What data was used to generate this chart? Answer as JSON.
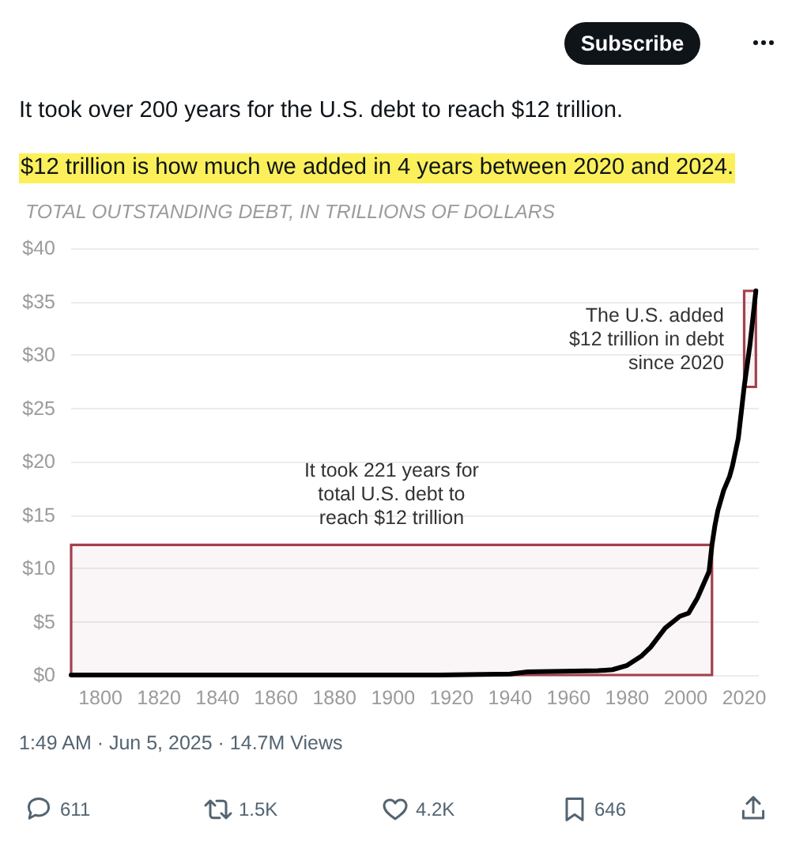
{
  "chart_data": {
    "type": "line",
    "title": "It took over 200 years for the U.S. debt to reach $12 trillion.",
    "subtitle": "$12 trillion is how much we added in 4 years between 2020 and 2024.",
    "ylabel": "TOTAL OUTSTANDING DEBT, IN TRILLIONS OF DOLLARS",
    "series": [
      {
        "color": "#000000",
        "x": [
          1790,
          1916,
          1940,
          1946,
          1970,
          1975,
          1980,
          1985,
          1988,
          1993,
          1998,
          2001,
          2004,
          2008,
          2009,
          2010,
          2011,
          2013,
          2015,
          2016,
          2018,
          2020,
          2022,
          2024
        ],
        "values": [
          0,
          0,
          0.1,
          0.3,
          0.4,
          0.5,
          0.9,
          1.8,
          2.6,
          4.4,
          5.5,
          5.8,
          7.2,
          9.7,
          12.2,
          14.0,
          15.4,
          17.3,
          18.6,
          19.6,
          22.2,
          27.0,
          31.0,
          36.0
        ]
      }
    ],
    "xlim": [
      1790,
      2025
    ],
    "xticks": [
      1800,
      1820,
      1840,
      1860,
      1880,
      1900,
      1920,
      1940,
      1960,
      1980,
      2000,
      2020
    ],
    "ylim": [
      0,
      40
    ],
    "yticks": [
      {
        "value": 0,
        "label": "$0"
      },
      {
        "value": 5,
        "label": "$5"
      },
      {
        "value": 10,
        "label": "$10"
      },
      {
        "value": 15,
        "label": "$15"
      },
      {
        "value": 20,
        "label": "$20"
      },
      {
        "value": 25,
        "label": "$25"
      },
      {
        "value": 30,
        "label": "$30"
      },
      {
        "value": 35,
        "label": "$35"
      },
      {
        "value": 40,
        "label": "$40"
      }
    ],
    "bands": [
      {
        "axis": "x",
        "from": 1790,
        "to": 2009,
        "label": "It took 221 years for\ntotal U.S. debt to\nreach $12 trillion",
        "color": "#a3404d"
      },
      {
        "axis": "x",
        "from": 2020,
        "to": 2024,
        "label": "The U.S. added\n$12 trillion in debt\nsince 2020",
        "color": "#a3404d"
      }
    ],
    "annotations": [
      "Subscribe",
      "1:49 AM · Jun 5, 2025 · 14.7M Views",
      "611",
      "1.5K",
      "4.2K",
      "646"
    ],
    "grid": "y",
    "marker": "none",
    "line_style": "solid"
  }
}
